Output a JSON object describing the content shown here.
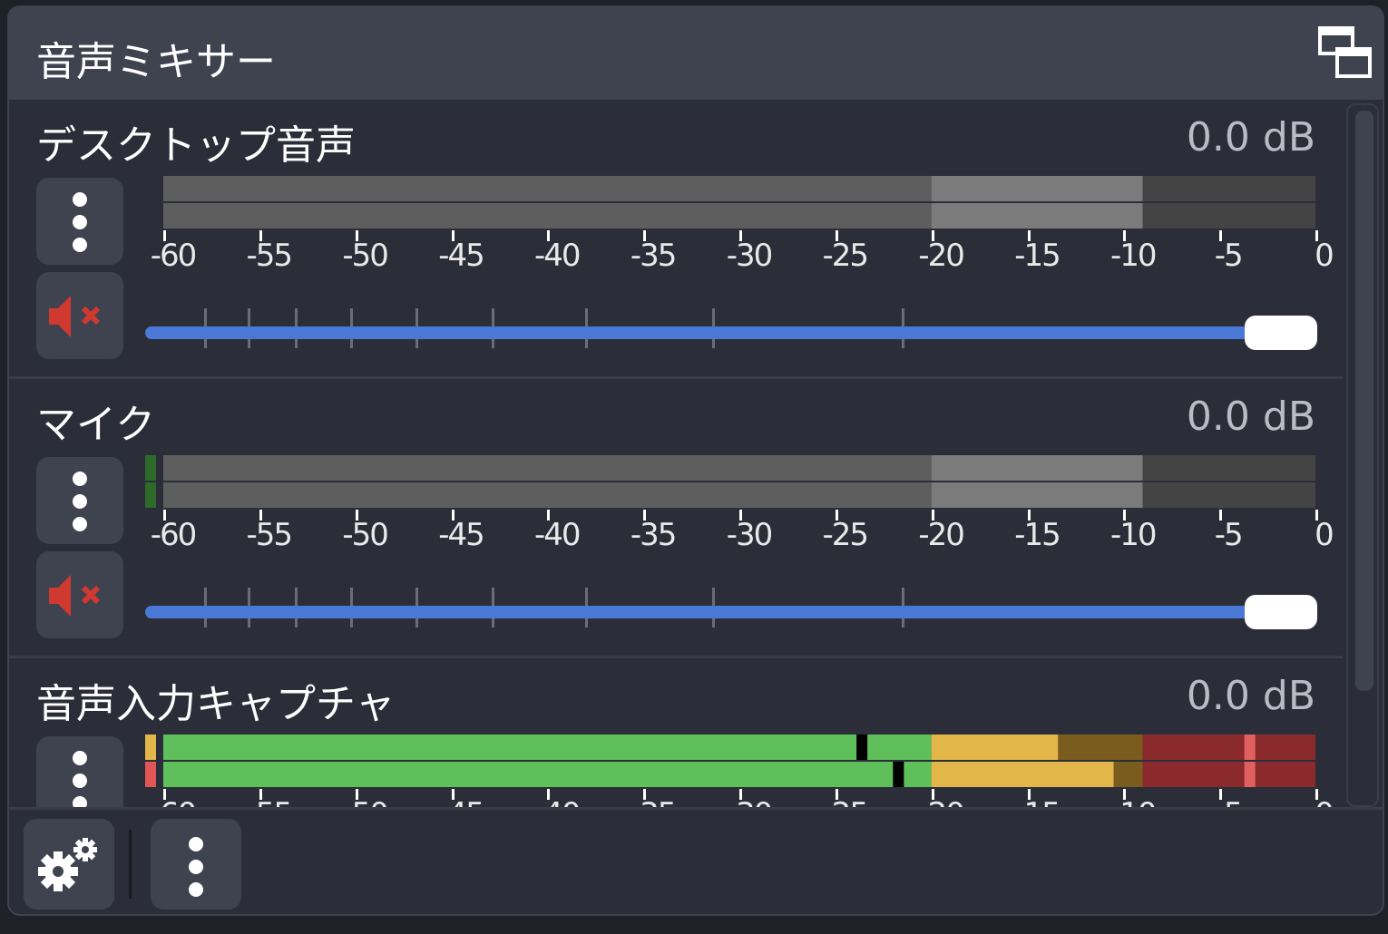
{
  "panel": {
    "title": "音声ミキサー",
    "float_icon": "undock-icon"
  },
  "meter_scale": {
    "min_db": -60,
    "max_db": 0,
    "tick_labels": [
      "-60",
      "-55",
      "-50",
      "-45",
      "-40",
      "-35",
      "-30",
      "-25",
      "-20",
      "-15",
      "-10",
      "-5",
      "0"
    ]
  },
  "colors": {
    "accent": "#4a78d6",
    "muted": "#d0392f",
    "green": "#5fbf5b",
    "yellow": "#e3b64a",
    "red": "#8b2a2d"
  },
  "sources": [
    {
      "name": "デスクトップ音声",
      "volume_db": "0.0 dB",
      "volume_percent": 100,
      "muted": true,
      "active": false,
      "levels_db": null,
      "peaks_db": null,
      "peak_hold_db": null,
      "input_indicator": [
        null,
        null
      ]
    },
    {
      "name": "マイク",
      "volume_db": "0.0 dB",
      "volume_percent": 100,
      "muted": true,
      "active": false,
      "levels_db": null,
      "peaks_db": null,
      "peak_hold_db": null,
      "input_indicator": [
        "#2e6b2a",
        "#2e6b2a"
      ]
    },
    {
      "name": "音声入力キャプチャ",
      "volume_db": "0.0 dB",
      "volume_percent": 100,
      "muted": false,
      "active": true,
      "levels_db": [
        -13.4,
        -10.5
      ],
      "peaks_db": [
        -23.9,
        -22.0
      ],
      "peak_hold_db": -3.7,
      "input_indicator": [
        "#e3b64a",
        "#e05555"
      ]
    }
  ],
  "footer": {
    "settings_icon": "gears-icon",
    "menu_icon": "more-vertical-icon"
  }
}
